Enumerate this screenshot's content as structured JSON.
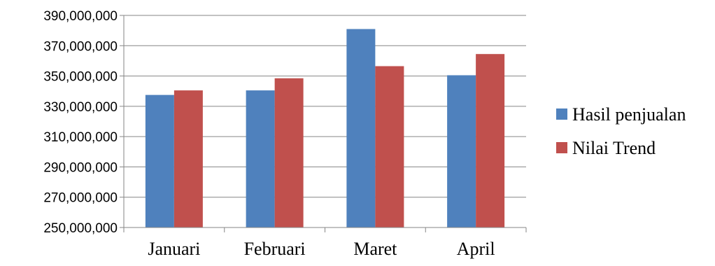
{
  "chart_data": {
    "type": "bar",
    "title": "",
    "xlabel": "",
    "ylabel": "",
    "categories": [
      "Januari",
      "Februari",
      "Maret",
      "April"
    ],
    "series": [
      {
        "name": "Hasil penjualan",
        "color": "#4f81bd",
        "values": [
          337500000,
          340500000,
          381000000,
          350500000
        ]
      },
      {
        "name": "Nilai Trend",
        "color": "#c0504d",
        "values": [
          340500000,
          348500000,
          356500000,
          364500000
        ]
      }
    ],
    "ylim": [
      250000000,
      390000000
    ],
    "yticks": [
      250000000,
      270000000,
      290000000,
      310000000,
      330000000,
      350000000,
      370000000,
      390000000
    ],
    "ytick_labels": [
      "250,000,000",
      "270,000,000",
      "290,000,000",
      "310,000,000",
      "330,000,000",
      "350,000,000",
      "370,000,000",
      "390,000,000"
    ],
    "grid": true,
    "legend_position": "right"
  }
}
